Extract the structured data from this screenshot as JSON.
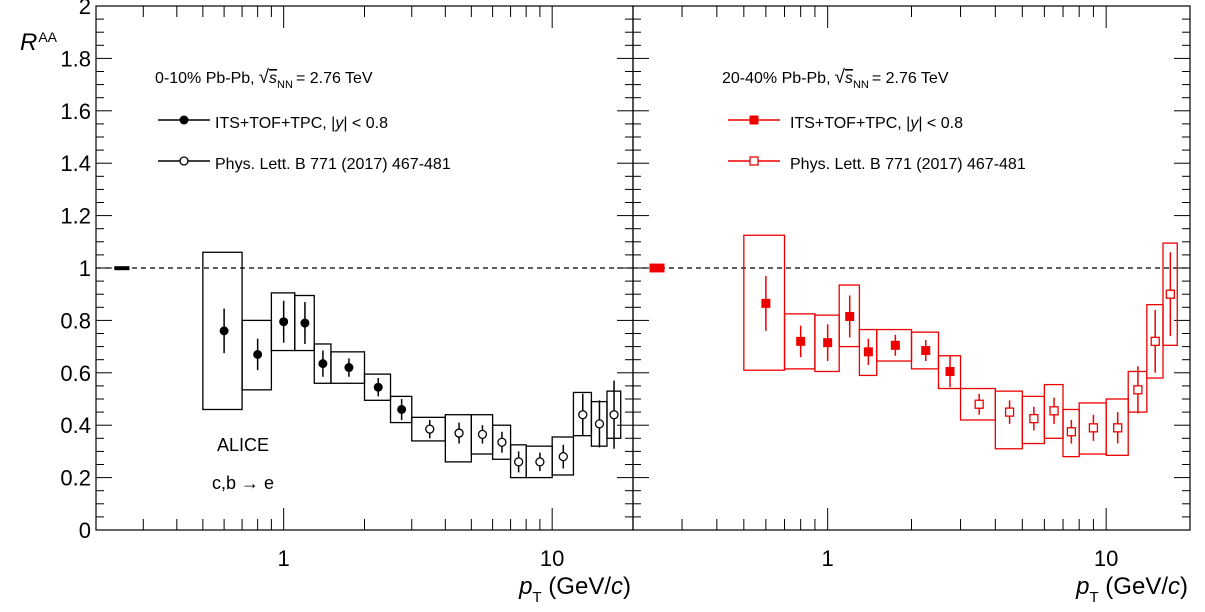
{
  "figure": {
    "ylabel_main": "R",
    "ylabel_sub": "AA",
    "xlabel_main": "p",
    "xlabel_sub": "T",
    "xlabel_unit_open": "(GeV/",
    "xlabel_unit_italic": "c",
    "xlabel_unit_close": ")",
    "ytick_labels": [
      "0",
      "0.2",
      "0.4",
      "0.6",
      "0.8",
      "1",
      "1.2",
      "1.4",
      "1.6",
      "1.8",
      "2"
    ],
    "xtick_labels": [
      "1",
      "10"
    ],
    "ylim": [
      0,
      2
    ],
    "xlim": [
      0.2,
      20
    ],
    "xscale": "log",
    "reference_line": 1
  },
  "panels": [
    {
      "color": "#000000",
      "header_prefix": "0-10% Pb-Pb,",
      "header_s": "s",
      "header_sub": "NN",
      "header_suffix": "= 2.76 TeV",
      "legend": [
        {
          "marker": "filled-circle",
          "label_prefix": "ITS+TOF+TPC, |",
          "label_italic": "y",
          "label_suffix": "| < 0.8"
        },
        {
          "marker": "open-circle",
          "label": "Phys. Lett. B 771 (2017) 467-481"
        }
      ],
      "annotations": [
        "ALICE",
        "c,b → e"
      ]
    },
    {
      "color": "#ee0000",
      "header_prefix": "20-40% Pb-Pb,",
      "header_s": "s",
      "header_sub": "NN",
      "header_suffix": "= 2.76 TeV",
      "legend": [
        {
          "marker": "filled-square",
          "label_prefix": "ITS+TOF+TPC, |",
          "label_italic": "y",
          "label_suffix": "| < 0.8"
        },
        {
          "marker": "open-square",
          "label": "Phys. Lett. B 771 (2017) 467-481"
        }
      ],
      "annotations": []
    }
  ],
  "chart_data": [
    {
      "type": "scatter",
      "xscale": "log",
      "xlim": [
        0.2,
        20
      ],
      "ylim": [
        0,
        2
      ],
      "norm_uncertainty": {
        "lo": 0.995,
        "hi": 1.005
      },
      "series": [
        {
          "name": "ITS+TOF+TPC, |y| < 0.8",
          "marker": "filled-circle",
          "color": "#000000",
          "points": [
            {
              "x": 0.6,
              "y": 0.76,
              "stat": 0.085,
              "syslo": 0.46,
              "syshi": 1.06,
              "xlo": 0.5,
              "xhi": 0.7
            },
            {
              "x": 0.8,
              "y": 0.67,
              "stat": 0.06,
              "syslo": 0.535,
              "syshi": 0.8,
              "xlo": 0.7,
              "xhi": 0.9
            },
            {
              "x": 1.0,
              "y": 0.795,
              "stat": 0.08,
              "syslo": 0.685,
              "syshi": 0.905,
              "xlo": 0.9,
              "xhi": 1.1
            },
            {
              "x": 1.2,
              "y": 0.79,
              "stat": 0.08,
              "syslo": 0.685,
              "syshi": 0.895,
              "xlo": 1.1,
              "xhi": 1.3
            },
            {
              "x": 1.4,
              "y": 0.635,
              "stat": 0.05,
              "syslo": 0.56,
              "syshi": 0.71,
              "xlo": 1.3,
              "xhi": 1.5
            },
            {
              "x": 1.75,
              "y": 0.62,
              "stat": 0.035,
              "syslo": 0.56,
              "syshi": 0.68,
              "xlo": 1.5,
              "xhi": 2.0
            },
            {
              "x": 2.25,
              "y": 0.545,
              "stat": 0.035,
              "syslo": 0.495,
              "syshi": 0.595,
              "xlo": 2.0,
              "xhi": 2.5
            },
            {
              "x": 2.75,
              "y": 0.46,
              "stat": 0.04,
              "syslo": 0.41,
              "syshi": 0.51,
              "xlo": 2.5,
              "xhi": 3.0
            }
          ]
        },
        {
          "name": "Phys. Lett. B 771 (2017) 467-481",
          "marker": "open-circle",
          "color": "#000000",
          "points": [
            {
              "x": 3.5,
              "y": 0.385,
              "stat": 0.035,
              "syslo": 0.34,
              "syshi": 0.43,
              "xlo": 3.0,
              "xhi": 4.0
            },
            {
              "x": 4.5,
              "y": 0.37,
              "stat": 0.04,
              "syslo": 0.26,
              "syshi": 0.44,
              "xlo": 4.0,
              "xhi": 5.0
            },
            {
              "x": 5.5,
              "y": 0.365,
              "stat": 0.035,
              "syslo": 0.29,
              "syshi": 0.44,
              "xlo": 5.0,
              "xhi": 6.0
            },
            {
              "x": 6.5,
              "y": 0.335,
              "stat": 0.04,
              "syslo": 0.27,
              "syshi": 0.4,
              "xlo": 6.0,
              "xhi": 7.0
            },
            {
              "x": 7.5,
              "y": 0.26,
              "stat": 0.04,
              "syslo": 0.2,
              "syshi": 0.325,
              "xlo": 7.0,
              "xhi": 8.0
            },
            {
              "x": 9.0,
              "y": 0.26,
              "stat": 0.035,
              "syslo": 0.2,
              "syshi": 0.32,
              "xlo": 8.0,
              "xhi": 10.0
            },
            {
              "x": 11.0,
              "y": 0.28,
              "stat": 0.045,
              "syslo": 0.21,
              "syshi": 0.355,
              "xlo": 10.0,
              "xhi": 12.0
            },
            {
              "x": 13.0,
              "y": 0.44,
              "stat": 0.08,
              "syslo": 0.36,
              "syshi": 0.525,
              "xlo": 12.0,
              "xhi": 14.0
            },
            {
              "x": 15.0,
              "y": 0.405,
              "stat": 0.09,
              "syslo": 0.32,
              "syshi": 0.49,
              "xlo": 14.0,
              "xhi": 16.0
            },
            {
              "x": 17.0,
              "y": 0.44,
              "stat": 0.13,
              "syslo": 0.35,
              "syshi": 0.53,
              "xlo": 16.0,
              "xhi": 18.0
            }
          ]
        }
      ]
    },
    {
      "type": "scatter",
      "xscale": "log",
      "xlim": [
        0.2,
        20
      ],
      "ylim": [
        0,
        2
      ],
      "norm_uncertainty": {
        "lo": 0.985,
        "hi": 1.015
      },
      "series": [
        {
          "name": "ITS+TOF+TPC, |y| < 0.8",
          "marker": "filled-square",
          "color": "#ee0000",
          "points": [
            {
              "x": 0.6,
              "y": 0.865,
              "stat": 0.105,
              "syslo": 0.61,
              "syshi": 1.125,
              "xlo": 0.5,
              "xhi": 0.7
            },
            {
              "x": 0.8,
              "y": 0.72,
              "stat": 0.06,
              "syslo": 0.615,
              "syshi": 0.825,
              "xlo": 0.7,
              "xhi": 0.9
            },
            {
              "x": 1.0,
              "y": 0.715,
              "stat": 0.07,
              "syslo": 0.605,
              "syshi": 0.82,
              "xlo": 0.9,
              "xhi": 1.1
            },
            {
              "x": 1.2,
              "y": 0.815,
              "stat": 0.08,
              "syslo": 0.7,
              "syshi": 0.935,
              "xlo": 1.1,
              "xhi": 1.3
            },
            {
              "x": 1.4,
              "y": 0.68,
              "stat": 0.05,
              "syslo": 0.59,
              "syshi": 0.765,
              "xlo": 1.3,
              "xhi": 1.5
            },
            {
              "x": 1.75,
              "y": 0.705,
              "stat": 0.04,
              "syslo": 0.645,
              "syshi": 0.765,
              "xlo": 1.5,
              "xhi": 2.0
            },
            {
              "x": 2.25,
              "y": 0.685,
              "stat": 0.04,
              "syslo": 0.615,
              "syshi": 0.755,
              "xlo": 2.0,
              "xhi": 2.5
            },
            {
              "x": 2.75,
              "y": 0.605,
              "stat": 0.06,
              "syslo": 0.54,
              "syshi": 0.665,
              "xlo": 2.5,
              "xhi": 3.0
            }
          ]
        },
        {
          "name": "Phys. Lett. B 771 (2017) 467-481",
          "marker": "open-square",
          "color": "#ee0000",
          "points": [
            {
              "x": 3.5,
              "y": 0.48,
              "stat": 0.04,
              "syslo": 0.42,
              "syshi": 0.54,
              "xlo": 3.0,
              "xhi": 4.0
            },
            {
              "x": 4.5,
              "y": 0.45,
              "stat": 0.045,
              "syslo": 0.31,
              "syshi": 0.53,
              "xlo": 4.0,
              "xhi": 5.0
            },
            {
              "x": 5.5,
              "y": 0.425,
              "stat": 0.045,
              "syslo": 0.33,
              "syshi": 0.51,
              "xlo": 5.0,
              "xhi": 6.0
            },
            {
              "x": 6.5,
              "y": 0.455,
              "stat": 0.05,
              "syslo": 0.35,
              "syshi": 0.555,
              "xlo": 6.0,
              "xhi": 7.0
            },
            {
              "x": 7.5,
              "y": 0.375,
              "stat": 0.045,
              "syslo": 0.28,
              "syshi": 0.46,
              "xlo": 7.0,
              "xhi": 8.0
            },
            {
              "x": 9.0,
              "y": 0.39,
              "stat": 0.05,
              "syslo": 0.29,
              "syshi": 0.485,
              "xlo": 8.0,
              "xhi": 10.0
            },
            {
              "x": 11.0,
              "y": 0.39,
              "stat": 0.06,
              "syslo": 0.285,
              "syshi": 0.5,
              "xlo": 10.0,
              "xhi": 12.0
            },
            {
              "x": 13.0,
              "y": 0.535,
              "stat": 0.09,
              "syslo": 0.45,
              "syshi": 0.605,
              "xlo": 12.0,
              "xhi": 14.0
            },
            {
              "x": 15.0,
              "y": 0.72,
              "stat": 0.12,
              "syslo": 0.58,
              "syshi": 0.86,
              "xlo": 14.0,
              "xhi": 16.0
            },
            {
              "x": 17.0,
              "y": 0.9,
              "stat": 0.16,
              "syslo": 0.705,
              "syshi": 1.095,
              "xlo": 16.0,
              "xhi": 18.0
            }
          ]
        }
      ]
    }
  ]
}
